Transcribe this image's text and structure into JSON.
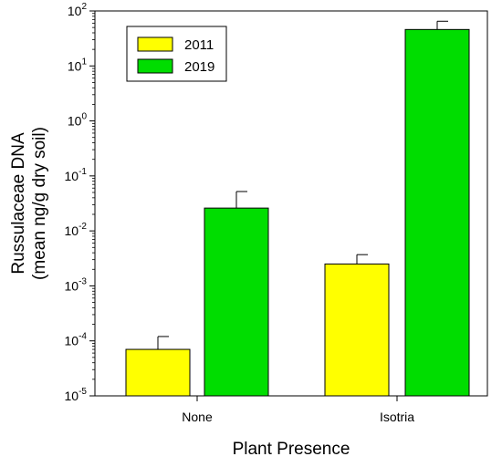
{
  "chart_data": {
    "type": "bar",
    "title": "",
    "xlabel": "Plant Presence",
    "ylabel": [
      "Russulaceae DNA",
      "(mean ng/g dry soil)"
    ],
    "y_scale": "log",
    "ylim": [
      1e-05,
      100
    ],
    "y_ticks": [
      {
        "base": "10",
        "exp": "-5",
        "value": 1e-05
      },
      {
        "base": "10",
        "exp": "-4",
        "value": 0.0001
      },
      {
        "base": "10",
        "exp": "-3",
        "value": 0.001
      },
      {
        "base": "10",
        "exp": "-2",
        "value": 0.01
      },
      {
        "base": "10",
        "exp": "-1",
        "value": 0.1
      },
      {
        "base": "10",
        "exp": "0",
        "value": 1
      },
      {
        "base": "10",
        "exp": "1",
        "value": 10
      },
      {
        "base": "10",
        "exp": "2",
        "value": 100
      }
    ],
    "categories": [
      "None",
      "Isotria"
    ],
    "series": [
      {
        "name": "2011",
        "color": "#ffff00",
        "values": [
          7e-05,
          0.0025
        ],
        "error_upper": [
          0.00012,
          0.0037
        ]
      },
      {
        "name": "2019",
        "color": "#00dd00",
        "values": [
          0.026,
          46
        ],
        "error_upper": [
          0.052,
          65
        ]
      }
    ],
    "legend": {
      "placement": "top-left"
    },
    "grid": false
  }
}
